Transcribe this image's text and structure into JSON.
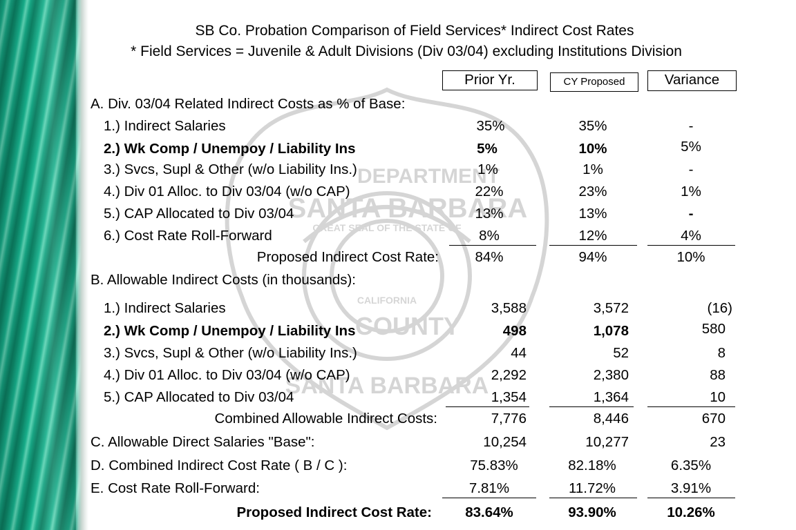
{
  "title": "SB Co. Probation Comparison of Field Services* Indirect Cost Rates",
  "subtitle": "* Field Services = Juvenile & Adult Divisions (Div 03/04) excluding Institutions Division",
  "columns": {
    "prior": "Prior Yr.",
    "proposed": "CY Proposed",
    "variance": "Variance"
  },
  "seal": {
    "ring_top": "DEPARTMENT",
    "name": "SANTA BARBARA",
    "inner": "GREAT SEAL OF THE STATE OF",
    "state": "CALIFORNIA",
    "county": "COUNTY",
    "bottom": "SANTA BARBARA"
  },
  "section_a": {
    "heading": "A. Div. 03/04 Related Indirect Costs as % of Base:",
    "rows": [
      {
        "label": "1.) Indirect Salaries",
        "prior": "35%",
        "proposed": "35%",
        "variance": "-"
      },
      {
        "label": "2.) Wk Comp / Unempoy / Liability Ins",
        "prior": "5%",
        "proposed": "10%",
        "variance": "5%"
      },
      {
        "label": "3.) Svcs, Supl & Other (w/o Liability Ins.)",
        "prior": "1%",
        "proposed": "1%",
        "variance": "-"
      },
      {
        "label": "4.) Div 01 Alloc. to Div 03/04 (w/o CAP)",
        "prior": "22%",
        "proposed": "23%",
        "variance": "1%"
      },
      {
        "label": "5.) CAP Allocated to Div 03/04",
        "prior": "13%",
        "proposed": "13%",
        "variance": "-"
      },
      {
        "label": "6.) Cost Rate Roll-Forward",
        "prior": "8%",
        "proposed": "12%",
        "variance": "4%"
      }
    ],
    "total": {
      "label": "Proposed Indirect Cost Rate:",
      "prior": "84%",
      "proposed": "94%",
      "variance": "10%"
    }
  },
  "section_b": {
    "heading": "B. Allowable Indirect Costs (in thousands):",
    "rows": [
      {
        "label": "1.) Indirect Salaries",
        "prior": "3,588",
        "proposed": "3,572",
        "variance": "(16)"
      },
      {
        "label": "2.) Wk Comp / Unempoy / Liability Ins",
        "prior": "498",
        "proposed": "1,078",
        "variance": "580"
      },
      {
        "label": "3.) Svcs, Supl & Other (w/o Liability Ins.)",
        "prior": "44",
        "proposed": "52",
        "variance": "8"
      },
      {
        "label": "4.) Div 01 Alloc. to Div 03/04 (w/o CAP)",
        "prior": "2,292",
        "proposed": "2,380",
        "variance": "88"
      },
      {
        "label": "5.) CAP Allocated to Div 03/04",
        "prior": "1,354",
        "proposed": "1,364",
        "variance": "10"
      }
    ],
    "total": {
      "label": "Combined Allowable Indirect Costs:",
      "prior": "7,776",
      "proposed": "8,446",
      "variance": "670"
    }
  },
  "section_c": {
    "label": "C. Allowable Direct Salaries \"Base\":",
    "prior": "10,254",
    "proposed": "10,277",
    "variance": "23"
  },
  "section_d": {
    "label": "D. Combined Indirect Cost Rate ( B / C ):",
    "prior": "75.83%",
    "proposed": "82.18%",
    "variance": "6.35%"
  },
  "section_e": {
    "label": "E. Cost Rate Roll-Forward:",
    "prior": "7.81%",
    "proposed": "11.72%",
    "variance": "3.91%"
  },
  "final": {
    "label": "Proposed Indirect Cost Rate:",
    "prior": "83.64%",
    "proposed": "93.90%",
    "variance": "10.26%"
  }
}
